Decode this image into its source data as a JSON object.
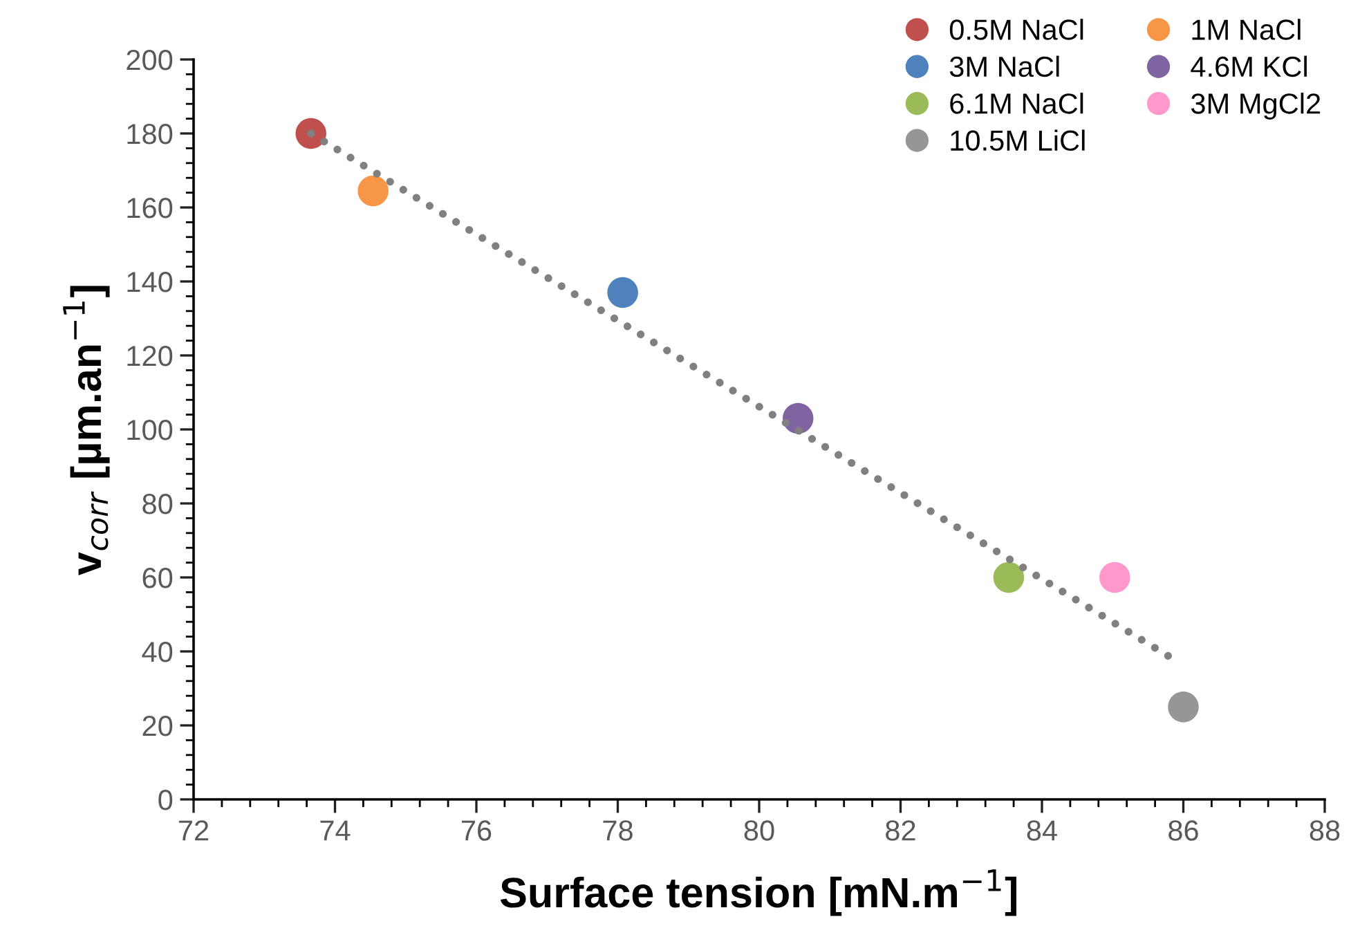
{
  "chart_data": {
    "type": "scatter",
    "xlabel": "Surface tension [mN.m$^{−1}$]",
    "ylabel": "v$_{corr}$ [µm.an$^{−1}$]",
    "xlim": [
      72,
      88
    ],
    "xticks": [
      72,
      74,
      76,
      78,
      80,
      82,
      84,
      86,
      88
    ],
    "ylim": [
      0,
      200
    ],
    "yticks": [
      0,
      20,
      40,
      60,
      80,
      100,
      120,
      140,
      160,
      180,
      200
    ],
    "grid": false,
    "legend": "top right",
    "marker": "circle",
    "series": [
      {
        "type": "line",
        "color": "#808080",
        "line_style": "dotted",
        "marker": "none",
        "x": [
          73.66,
          85.87
        ],
        "values": [
          180,
          37.8
        ]
      },
      {
        "name": "0.5M NaCl",
        "color": "#c0504d",
        "x": [
          73.66
        ],
        "values": [
          180
        ]
      },
      {
        "name": "1M NaCl",
        "color": "#f79646",
        "x": [
          74.54
        ],
        "values": [
          164.5
        ]
      },
      {
        "name": "3M NaCl",
        "color": "#4f81bd",
        "x": [
          78.07
        ],
        "values": [
          137
        ]
      },
      {
        "name": "4.6M KCl",
        "color": "#8064a2",
        "x": [
          80.55
        ],
        "values": [
          103
        ]
      },
      {
        "name": "6.1M NaCl",
        "color": "#9bbb59",
        "x": [
          83.53
        ],
        "values": [
          60
        ]
      },
      {
        "name": "3M MgCl2",
        "color": "#ff99cc",
        "x": [
          85.03
        ],
        "values": [
          60
        ]
      },
      {
        "name": "10.5M LiCl",
        "color": "#969696",
        "x": [
          86.0
        ],
        "values": [
          25
        ]
      }
    ]
  }
}
